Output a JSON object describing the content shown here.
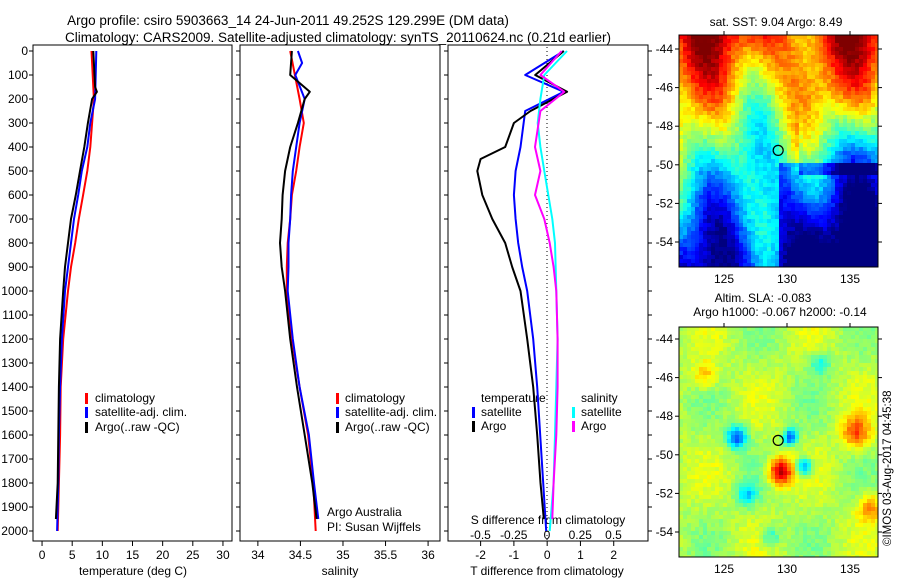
{
  "title": {
    "line1": "Argo profile: csiro 5903663_14 24-Jun-2011 49.252S 129.299E (DM data)",
    "line2": "Climatology: CARS2009. Satellite-adjusted climatology: synTS_20110624.nc (0.21d earlier)"
  },
  "colors": {
    "climatology": "#ff0000",
    "satellite": "#0000ff",
    "argo": "#000000",
    "s_satellite": "#00ffff",
    "s_argo": "#ff00ff"
  },
  "chart_data": [
    {
      "type": "line",
      "name": "temperature",
      "xlabel": "temperature (deg C)",
      "xlim": [
        -1.5,
        31.5
      ],
      "ylim": [
        2050,
        0
      ],
      "xticks": [
        0,
        5,
        10,
        15,
        20,
        25,
        30
      ],
      "yticks": [
        0,
        100,
        200,
        300,
        400,
        500,
        600,
        700,
        800,
        900,
        1000,
        1100,
        1200,
        1300,
        1400,
        1500,
        1600,
        1700,
        1800,
        1900,
        2000
      ],
      "legend": [
        "climatology",
        "satellite-adj. clim.",
        "Argo(..raw -QC)"
      ],
      "legend_position": "lower-center",
      "series": [
        {
          "name": "climatology",
          "color": "#ff0000",
          "depth": [
            0,
            200,
            300,
            400,
            500,
            600,
            700,
            800,
            900,
            1000,
            1200,
            1400,
            1600,
            1800,
            2000
          ],
          "values": [
            8.2,
            8.6,
            8.3,
            8.0,
            7.5,
            6.8,
            6.1,
            5.5,
            4.8,
            4.3,
            3.5,
            3.1,
            3.0,
            2.8,
            2.6
          ]
        },
        {
          "name": "satellite-adj. clim.",
          "color": "#0000ff",
          "depth": [
            0,
            200,
            300,
            400,
            500,
            600,
            700,
            800,
            900,
            1000,
            1200,
            1400,
            1600,
            1800,
            2000
          ],
          "values": [
            9.0,
            8.8,
            8.0,
            7.5,
            6.6,
            6.0,
            5.3,
            4.8,
            4.3,
            3.8,
            3.3,
            3.0,
            2.8,
            2.7,
            2.5
          ]
        },
        {
          "name": "Argo(..raw -QC)",
          "color": "#000000",
          "depth": [
            0,
            150,
            170,
            200,
            300,
            400,
            500,
            600,
            700,
            800,
            900,
            1000,
            1200,
            1400,
            1600,
            1800,
            1950
          ],
          "values": [
            8.5,
            8.8,
            9.1,
            8.3,
            7.6,
            7.0,
            6.3,
            5.6,
            4.8,
            4.3,
            3.8,
            3.5,
            3.0,
            2.8,
            2.7,
            2.6,
            2.3
          ]
        }
      ]
    },
    {
      "type": "line",
      "name": "salinity",
      "xlabel": "salinity",
      "xlim": [
        33.79,
        36.14
      ],
      "ylim": [
        2050,
        0
      ],
      "xticks": [
        34,
        34.5,
        35,
        35.5,
        36
      ],
      "legend": [
        "climatology",
        "satellite-adj. clim.",
        "Argo(..raw -QC)"
      ],
      "annotation": [
        "Argo Australia",
        "PI: Susan Wijffels"
      ],
      "series": [
        {
          "name": "climatology",
          "color": "#ff0000",
          "depth": [
            0,
            200,
            300,
            400,
            500,
            600,
            700,
            800,
            900,
            1000,
            1200,
            1400,
            1600,
            1800,
            2000
          ],
          "values": [
            34.38,
            34.49,
            34.54,
            34.49,
            34.45,
            34.4,
            34.38,
            34.35,
            34.34,
            34.34,
            34.4,
            34.49,
            34.59,
            34.65,
            34.68
          ]
        },
        {
          "name": "satellite-adj. clim.",
          "color": "#0000ff",
          "depth": [
            0,
            50,
            100,
            200,
            300,
            400,
            500,
            600,
            700,
            800,
            900,
            1000,
            1200,
            1400,
            1600,
            1800,
            1950
          ],
          "values": [
            34.47,
            34.52,
            34.44,
            34.55,
            34.49,
            34.45,
            34.41,
            34.39,
            34.38,
            34.36,
            34.36,
            34.35,
            34.41,
            34.49,
            34.6,
            34.66,
            34.71
          ]
        },
        {
          "name": "Argo(..raw -QC)",
          "color": "#000000",
          "depth": [
            0,
            100,
            170,
            200,
            300,
            400,
            500,
            600,
            700,
            800,
            900,
            1000,
            1200,
            1400,
            1600,
            1800,
            1950
          ],
          "values": [
            34.4,
            34.38,
            34.61,
            34.55,
            34.47,
            34.38,
            34.32,
            34.29,
            34.28,
            34.26,
            34.28,
            34.32,
            34.38,
            34.46,
            34.55,
            34.64,
            34.69
          ]
        }
      ]
    },
    {
      "type": "line",
      "name": "difference",
      "xlabel": "T difference from climatology",
      "xlabel2": "S difference from climatology",
      "xlim": [
        -2.98,
        3.03
      ],
      "ylim": [
        2050,
        0
      ],
      "xticks": [
        -2,
        -1,
        0,
        1,
        2
      ],
      "xticks2": [
        "-0.5",
        "-0.25",
        "0",
        "0.25",
        "0.5"
      ],
      "xticks2_values": [
        -0.5,
        -0.25,
        0,
        0.25,
        0.5
      ],
      "legend_temperature": {
        "title": "temperature",
        "items": [
          "satellite",
          "Argo"
        ]
      },
      "legend_salinity": {
        "title": "salinity",
        "items": [
          "satellite",
          "Argo"
        ]
      },
      "series": [
        {
          "name": "T satellite",
          "color": "#0000ff",
          "depth": [
            0,
            100,
            170,
            250,
            400,
            500,
            600,
            700,
            800,
            900,
            1000,
            1200,
            1400,
            1600,
            1800,
            2000
          ],
          "values": [
            0.5,
            -0.66,
            0.5,
            -0.66,
            -0.8,
            -0.95,
            -1.0,
            -0.95,
            -0.87,
            -0.75,
            -0.6,
            -0.42,
            -0.3,
            -0.21,
            -0.12,
            -0.03
          ]
        },
        {
          "name": "T Argo",
          "color": "#000000",
          "depth": [
            0,
            100,
            170,
            250,
            300,
            400,
            450,
            500,
            600,
            700,
            800,
            900,
            1000,
            1200,
            1400,
            1600,
            1800,
            1950
          ],
          "values": [
            0.5,
            -0.36,
            0.6,
            -0.5,
            -1.0,
            -1.26,
            -2.0,
            -2.1,
            -1.95,
            -1.65,
            -1.26,
            -1.05,
            -0.8,
            -0.6,
            -0.42,
            -0.3,
            -0.2,
            -0.1
          ]
        },
        {
          "name": "S satellite",
          "color": "#00ffff",
          "depth": [
            0,
            100,
            200,
            300,
            400,
            500,
            600,
            700,
            800,
            1000,
            1200,
            1400,
            1600,
            1800,
            2000
          ],
          "values": [
            0.15,
            -0.02,
            -0.05,
            -0.07,
            -0.05,
            -0.02,
            0.01,
            0.04,
            0.06,
            0.07,
            0.08,
            0.07,
            0.06,
            0.05,
            0.02
          ],
          "axis": "S"
        },
        {
          "name": "S Argo",
          "color": "#ff00ff",
          "depth": [
            0,
            100,
            170,
            250,
            400,
            500,
            600,
            700,
            800,
            900,
            1000,
            1200,
            1400,
            1600,
            1800,
            1950
          ],
          "values": [
            0.11,
            -0.05,
            0.13,
            -0.05,
            -0.09,
            -0.05,
            -0.09,
            -0.02,
            0.02,
            0.05,
            0.07,
            0.08,
            0.08,
            0.07,
            0.05,
            0.04
          ],
          "axis": "S"
        }
      ]
    },
    {
      "type": "heatmap",
      "name": "sst-map",
      "title": "sat. SST: 9.04  Argo: 8.49",
      "xlim": [
        121.4,
        137.2
      ],
      "ylim": [
        -55.3,
        -43.3
      ],
      "xticks": [
        125,
        130,
        135
      ],
      "yticks": [
        -44,
        -46,
        -48,
        -50,
        -52,
        -54
      ],
      "marker": {
        "lon": 129.299,
        "lat": -49.252
      }
    },
    {
      "type": "heatmap",
      "name": "sla-map",
      "title": "Altim. SLA: -0.083",
      "subtitle": "Argo h1000: -0.067 h2000: -0.14",
      "xlim": [
        121.4,
        137.2
      ],
      "ylim": [
        -55.3,
        -43.3
      ],
      "xticks": [
        125,
        130,
        135
      ],
      "yticks": [
        -44,
        -46,
        -48,
        -50,
        -52,
        -54
      ],
      "marker": {
        "lon": 129.299,
        "lat": -49.252
      }
    }
  ],
  "credit": "©IMOS 03-Aug-2017 04:45:38"
}
